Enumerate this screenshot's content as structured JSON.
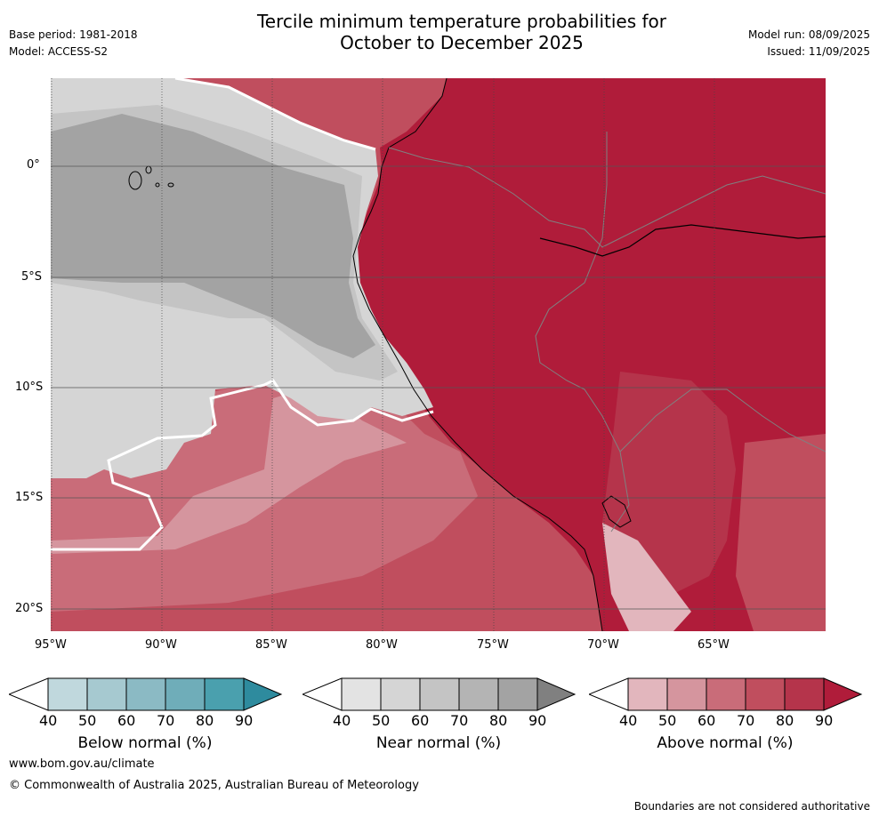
{
  "title_line1": "Tercile minimum temperature probabilities for",
  "title_line2": "October to December 2025",
  "base_period": "Base period: 1981-2018",
  "model": "Model: ACCESS-S2",
  "model_run": "Model run: 08/09/2025",
  "issued": "Issued: 11/09/2025",
  "lon_ticks": [
    "95°W",
    "90°W",
    "85°W",
    "80°W",
    "75°W",
    "70°W",
    "65°W"
  ],
  "lat_ticks": [
    "0°",
    "5°S",
    "10°S",
    "15°S",
    "20°S"
  ],
  "colorbars": [
    {
      "label": "Below normal (%)",
      "ticks": [
        "40",
        "50",
        "60",
        "70",
        "80",
        "90"
      ],
      "colors": [
        "#ffffff",
        "#c0d8dd",
        "#a6c9d0",
        "#8bbac4",
        "#6fadb9",
        "#4aa0ae",
        "#2e8b9e"
      ]
    },
    {
      "label": "Near normal (%)",
      "ticks": [
        "40",
        "50",
        "60",
        "70",
        "80",
        "90"
      ],
      "colors": [
        "#ffffff",
        "#e3e3e3",
        "#d5d5d5",
        "#c4c4c4",
        "#b4b4b4",
        "#a3a3a3",
        "#808080"
      ]
    },
    {
      "label": "Above normal (%)",
      "ticks": [
        "40",
        "50",
        "60",
        "70",
        "80",
        "90"
      ],
      "colors": [
        "#ffffff",
        "#e2b6bd",
        "#d5959e",
        "#c96c79",
        "#c04e5e",
        "#b5344b",
        "#b01c3a"
      ]
    }
  ],
  "website": "www.bom.gov.au/climate",
  "copyright": "© Commonwealth of Australia 2025, Australian Bureau of Meteorology",
  "disclaimer": "Boundaries are not considered authoritative"
}
